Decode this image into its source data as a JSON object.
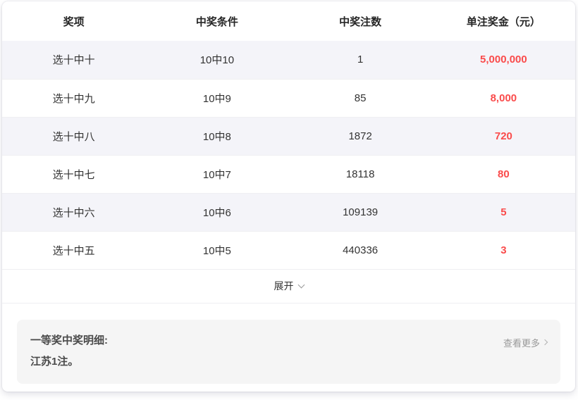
{
  "table": {
    "headers": {
      "prize": "奖项",
      "condition": "中奖条件",
      "count": "中奖注数",
      "amount": "单注奖金（元）"
    },
    "rows": [
      {
        "prize": "选十中十",
        "condition": "10中10",
        "count": "1",
        "amount": "5,000,000"
      },
      {
        "prize": "选十中九",
        "condition": "10中9",
        "count": "85",
        "amount": "8,000"
      },
      {
        "prize": "选十中八",
        "condition": "10中8",
        "count": "1872",
        "amount": "720"
      },
      {
        "prize": "选十中七",
        "condition": "10中7",
        "count": "18118",
        "amount": "80"
      },
      {
        "prize": "选十中六",
        "condition": "10中6",
        "count": "109139",
        "amount": "5"
      },
      {
        "prize": "选十中五",
        "condition": "10中5",
        "count": "440336",
        "amount": "3"
      }
    ],
    "expand_label": "展开"
  },
  "details": {
    "title": "一等奖中奖明细:",
    "content": "江苏1注。",
    "more_label": "查看更多"
  },
  "colors": {
    "amount_red": "#fa4b4b",
    "row_stripe": "#f4f4f9",
    "row_border": "#efeff2",
    "detail_card_bg": "#f5f5f5",
    "muted_text": "#999999"
  }
}
